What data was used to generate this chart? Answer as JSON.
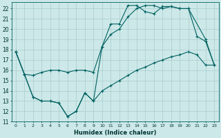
{
  "xlabel": "Humidex (Indice chaleur)",
  "bg_color": "#cce8e8",
  "grid_color": "#aacccc",
  "line_color": "#006060",
  "xlim": [
    -0.5,
    23.5
  ],
  "ylim": [
    11,
    22.6
  ],
  "xticks": [
    0,
    1,
    2,
    3,
    4,
    5,
    6,
    7,
    8,
    9,
    10,
    11,
    12,
    13,
    14,
    15,
    16,
    17,
    18,
    19,
    20,
    21,
    22,
    23
  ],
  "yticks": [
    11,
    12,
    13,
    14,
    15,
    16,
    17,
    18,
    19,
    20,
    21,
    22
  ],
  "line1_x": [
    0,
    1,
    2,
    3,
    4,
    5,
    6,
    7,
    8,
    9,
    10,
    11,
    12,
    13,
    14,
    15,
    16,
    17,
    18,
    19,
    20,
    21,
    22,
    23
  ],
  "line1_y": [
    17.8,
    15.6,
    13.4,
    13.0,
    13.0,
    12.8,
    11.5,
    12.0,
    13.8,
    13.0,
    18.3,
    20.5,
    20.5,
    22.3,
    22.3,
    21.7,
    21.5,
    22.2,
    22.2,
    22.0,
    22.0,
    19.3,
    18.8,
    16.5
  ],
  "line2_x": [
    0,
    1,
    2,
    3,
    4,
    5,
    6,
    7,
    8,
    9,
    10,
    11,
    12,
    13,
    14,
    15,
    16,
    17,
    18,
    19,
    20,
    22,
    23
  ],
  "line2_y": [
    17.8,
    15.6,
    15.5,
    15.8,
    16.0,
    16.0,
    15.8,
    16.0,
    16.0,
    15.8,
    18.3,
    19.5,
    20.0,
    21.2,
    22.0,
    22.3,
    22.3,
    22.0,
    22.2,
    22.0,
    22.0,
    19.0,
    16.5
  ],
  "line3_x": [
    0,
    1,
    2,
    3,
    4,
    5,
    6,
    7,
    8,
    9,
    10,
    11,
    12,
    13,
    14,
    15,
    16,
    17,
    18,
    19,
    20,
    21,
    22,
    23
  ],
  "line3_y": [
    17.8,
    15.6,
    13.4,
    13.0,
    13.0,
    12.8,
    11.5,
    12.0,
    13.8,
    13.0,
    14.0,
    14.5,
    15.0,
    15.5,
    16.0,
    16.3,
    16.7,
    17.0,
    17.3,
    17.5,
    17.8,
    17.5,
    16.5,
    16.5
  ]
}
